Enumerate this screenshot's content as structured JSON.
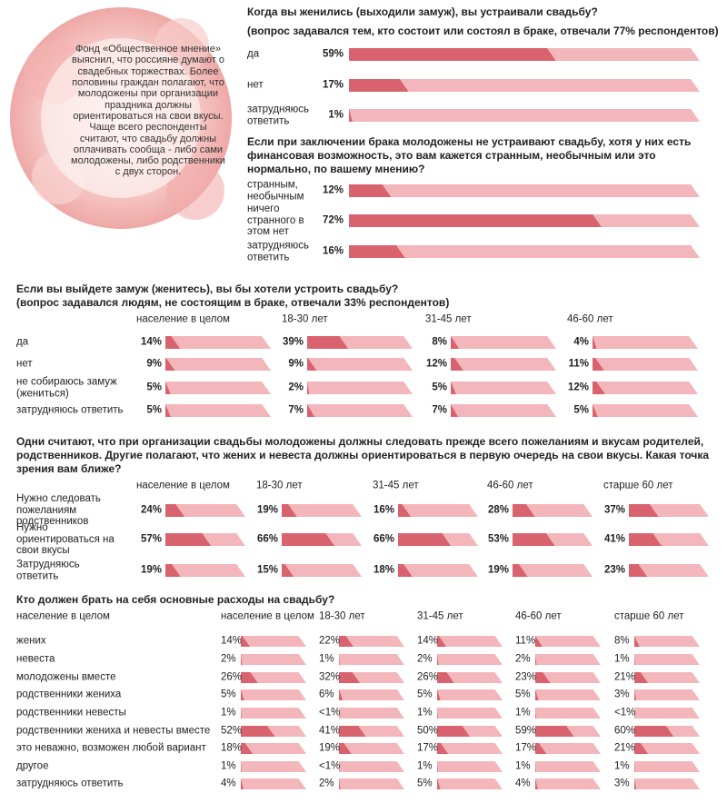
{
  "intro": "Фонд «Общественное мнение» выяснил, что россияне думают о свадебных торжествах. Более половины граждан полагают, что молодожены при организации праздника должны ориентироваться на свои вкусы. Чаще всего респонденты считают, что свадьбу должны оплачивать сообща - либо сами молодожены, либо родственники с двух сторон.",
  "chart_data": [
    {
      "type": "bar",
      "title": "Когда вы женились (выходили замуж), вы устраивали свадьбу?",
      "subtitle": "(вопрос задавался тем, кто состоит или состоял в браке, отвечали 77% респондентов)",
      "categories": [
        "да",
        "нет",
        "затрудняюсь ответить"
      ],
      "values": [
        59,
        17,
        1
      ],
      "value_labels": [
        "59%",
        "17%",
        "1%"
      ],
      "xlim": [
        0,
        100
      ],
      "color": "#d8636f",
      "track_color": "#f3b6ba"
    },
    {
      "type": "bar",
      "title": "Если при заключении брака молодожены не устраивают свадьбу, хотя у них есть финансовая возможность, это вам кажется странным, необычным или это нормально, по вашему мнению?",
      "categories": [
        "странным, необычным",
        "ничего странного в этом нет",
        "затрудняюсь ответить"
      ],
      "values": [
        12,
        72,
        16
      ],
      "value_labels": [
        "12%",
        "72%",
        "16%"
      ],
      "xlim": [
        0,
        100
      ],
      "color": "#d8636f",
      "track_color": "#f3b6ba"
    },
    {
      "type": "bar",
      "title": "Если вы выйдете замуж (женитесь), вы бы хотели устроить свадьбу?",
      "subtitle": "(вопрос задавался людям, не состоящим в браке, отвечали 33% респондентов)",
      "categories": [
        "да",
        "нет",
        "не собираюсь замуж (жениться)",
        "затрудняюсь ответить"
      ],
      "series": [
        {
          "name": "население в целом",
          "values": [
            14,
            9,
            5,
            5
          ],
          "value_labels": [
            "14%",
            "9%",
            "5%",
            "5%"
          ]
        },
        {
          "name": "18-30 лет",
          "values": [
            39,
            9,
            2,
            7
          ],
          "value_labels": [
            "39%",
            "9%",
            "2%",
            "7%"
          ]
        },
        {
          "name": "31-45 лет",
          "values": [
            8,
            12,
            5,
            7
          ],
          "value_labels": [
            "8%",
            "12%",
            "5%",
            "7%"
          ]
        },
        {
          "name": "46-60 лет",
          "values": [
            4,
            11,
            12,
            5
          ],
          "value_labels": [
            "4%",
            "11%",
            "12%",
            "5%"
          ]
        }
      ],
      "xlim": [
        0,
        100
      ],
      "color": "#d8636f",
      "track_color": "#f3b6ba"
    },
    {
      "type": "bar",
      "title": "Одни считают, что при организации свадьбы молодожены должны следовать прежде всего пожеланиям и вкусам родителей, родственников. Другие полагают, что жених и невеста должны ориентироваться в первую очередь на свои вкусы. Какая точка зрения вам ближе?",
      "categories": [
        "Нужно следовать пожеланиям родственников",
        "Нужно ориентироваться на свои вкусы",
        "Затрудняюсь ответить"
      ],
      "series": [
        {
          "name": "население в целом",
          "values": [
            24,
            57,
            19
          ],
          "value_labels": [
            "24%",
            "57%",
            "19%"
          ]
        },
        {
          "name": "18-30 лет",
          "values": [
            19,
            66,
            15
          ],
          "value_labels": [
            "19%",
            "66%",
            "15%"
          ]
        },
        {
          "name": "31-45 лет",
          "values": [
            16,
            66,
            18
          ],
          "value_labels": [
            "16%",
            "66%",
            "18%"
          ]
        },
        {
          "name": "46-60 лет",
          "values": [
            28,
            53,
            19
          ],
          "value_labels": [
            "28%",
            "53%",
            "19%"
          ]
        },
        {
          "name": "старше 60 лет",
          "values": [
            37,
            41,
            23
          ],
          "value_labels": [
            "37%",
            "41%",
            "23%"
          ]
        }
      ],
      "xlim": [
        0,
        100
      ],
      "color": "#d8636f",
      "track_color": "#f3b6ba"
    },
    {
      "type": "bar",
      "title": "Кто должен брать на себя основные расходы на свадьбу?",
      "category_header": "население в целом",
      "categories": [
        "жених",
        "невеста",
        "молодожены вместе",
        "родственники жениха",
        "родственники невесты",
        "родственники жениха и невесты вместе",
        "это неважно, возможен любой вариант",
        "другое",
        "затрудняюсь ответить"
      ],
      "series": [
        {
          "name": "население в целом",
          "values": [
            14,
            2,
            26,
            5,
            1,
            52,
            18,
            1,
            4
          ],
          "value_labels": [
            "14%",
            "2%",
            "26%",
            "5%",
            "1%",
            "52%",
            "18%",
            "1%",
            "4%"
          ]
        },
        {
          "name": "18-30 лет",
          "values": [
            22,
            1,
            32,
            6,
            0.5,
            41,
            19,
            0.5,
            2
          ],
          "value_labels": [
            "22%",
            "1%",
            "32%",
            "6%",
            "<1%",
            "41%",
            "19%",
            "<1%",
            "2%"
          ]
        },
        {
          "name": "31-45 лет",
          "values": [
            14,
            2,
            26,
            5,
            1,
            50,
            17,
            1,
            5
          ],
          "value_labels": [
            "14%",
            "2%",
            "26%",
            "5%",
            "1%",
            "50%",
            "17%",
            "1%",
            "5%"
          ]
        },
        {
          "name": "46-60 лет",
          "values": [
            11,
            2,
            23,
            5,
            1,
            59,
            17,
            1,
            4
          ],
          "value_labels": [
            "11%",
            "2%",
            "23%",
            "5%",
            "1%",
            "59%",
            "17%",
            "1%",
            "4%"
          ]
        },
        {
          "name": "старше 60 лет",
          "values": [
            8,
            1,
            21,
            3,
            0.5,
            60,
            21,
            1,
            3
          ],
          "value_labels": [
            "8%",
            "1%",
            "21%",
            "3%",
            "<1%",
            "60%",
            "21%",
            "1%",
            "3%"
          ]
        }
      ],
      "xlim": [
        0,
        100
      ],
      "color": "#d8636f",
      "track_color": "#f3b6ba"
    }
  ]
}
